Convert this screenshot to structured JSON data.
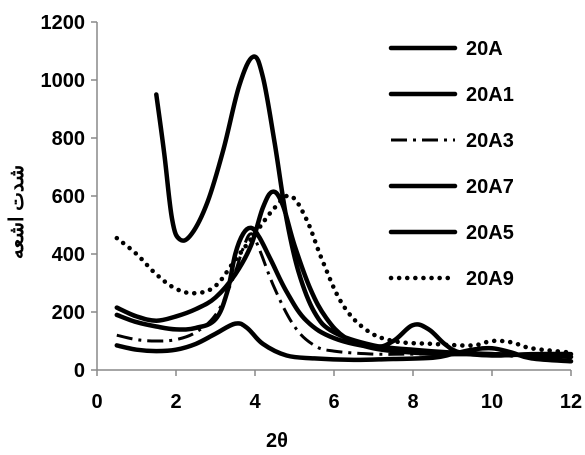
{
  "chart_data": {
    "type": "line",
    "title": "",
    "xlabel": "2θ",
    "ylabel": "شدت اشعه",
    "xlim": [
      0,
      12
    ],
    "ylim": [
      0,
      1200
    ],
    "x_ticks": [
      0,
      2,
      4,
      6,
      8,
      10,
      12
    ],
    "y_ticks": [
      0,
      200,
      400,
      600,
      800,
      1000,
      1200
    ],
    "grid": false,
    "legend_position": "top-right",
    "series": [
      {
        "name": "20A",
        "style": "solid",
        "color": "#000000",
        "points": [
          [
            1.5,
            950
          ],
          [
            1.7,
            750
          ],
          [
            1.9,
            520
          ],
          [
            2.1,
            450
          ],
          [
            2.4,
            470
          ],
          [
            2.8,
            580
          ],
          [
            3.2,
            760
          ],
          [
            3.6,
            980
          ],
          [
            3.95,
            1080
          ],
          [
            4.2,
            1010
          ],
          [
            4.5,
            780
          ],
          [
            4.8,
            520
          ],
          [
            5.1,
            340
          ],
          [
            5.5,
            200
          ],
          [
            6.0,
            130
          ],
          [
            7.0,
            85
          ],
          [
            8.0,
            70
          ],
          [
            9.0,
            60
          ],
          [
            10.0,
            55
          ],
          [
            10.5,
            50
          ]
        ]
      },
      {
        "name": "20A1",
        "style": "solid",
        "color": "#000000",
        "points": [
          [
            0.5,
            85
          ],
          [
            1.0,
            70
          ],
          [
            1.5,
            65
          ],
          [
            2.0,
            70
          ],
          [
            2.5,
            90
          ],
          [
            3.0,
            125
          ],
          [
            3.5,
            160
          ],
          [
            3.8,
            145
          ],
          [
            4.2,
            90
          ],
          [
            4.8,
            50
          ],
          [
            5.5,
            40
          ],
          [
            6.5,
            35
          ],
          [
            7.5,
            38
          ],
          [
            8.5,
            42
          ],
          [
            9.0,
            55
          ],
          [
            9.5,
            70
          ],
          [
            10.0,
            75
          ],
          [
            10.5,
            60
          ],
          [
            11.0,
            40
          ],
          [
            12.0,
            30
          ]
        ]
      },
      {
        "name": "20A3",
        "style": "dashdot",
        "color": "#000000",
        "points": [
          [
            0.5,
            120
          ],
          [
            1.0,
            105
          ],
          [
            1.5,
            100
          ],
          [
            2.0,
            105
          ],
          [
            2.5,
            130
          ],
          [
            3.0,
            190
          ],
          [
            3.4,
            300
          ],
          [
            3.7,
            420
          ],
          [
            3.9,
            470
          ],
          [
            4.1,
            420
          ],
          [
            4.5,
            280
          ],
          [
            5.0,
            150
          ],
          [
            5.5,
            85
          ],
          [
            6.0,
            65
          ],
          [
            7.0,
            55
          ],
          [
            8.0,
            55
          ],
          [
            9.0,
            55
          ],
          [
            10.0,
            55
          ],
          [
            11.0,
            50
          ],
          [
            12.0,
            45
          ]
        ]
      },
      {
        "name": "20A7",
        "style": "solid",
        "color": "#000000",
        "points": [
          [
            0.5,
            190
          ],
          [
            1.0,
            165
          ],
          [
            1.5,
            150
          ],
          [
            2.0,
            140
          ],
          [
            2.5,
            145
          ],
          [
            3.0,
            175
          ],
          [
            3.3,
            270
          ],
          [
            3.5,
            400
          ],
          [
            3.7,
            470
          ],
          [
            3.9,
            490
          ],
          [
            4.1,
            460
          ],
          [
            4.4,
            380
          ],
          [
            4.8,
            270
          ],
          [
            5.3,
            170
          ],
          [
            6.0,
            110
          ],
          [
            7.0,
            80
          ],
          [
            7.5,
            100
          ],
          [
            8.0,
            155
          ],
          [
            8.4,
            140
          ],
          [
            8.8,
            90
          ],
          [
            9.2,
            60
          ],
          [
            10.0,
            50
          ],
          [
            11.0,
            55
          ],
          [
            12.0,
            55
          ]
        ]
      },
      {
        "name": "20A5",
        "style": "solid",
        "color": "#000000",
        "points": [
          [
            0.5,
            215
          ],
          [
            1.0,
            185
          ],
          [
            1.5,
            170
          ],
          [
            2.0,
            185
          ],
          [
            2.5,
            210
          ],
          [
            3.0,
            250
          ],
          [
            3.5,
            330
          ],
          [
            3.9,
            430
          ],
          [
            4.2,
            560
          ],
          [
            4.45,
            615
          ],
          [
            4.7,
            570
          ],
          [
            5.0,
            430
          ],
          [
            5.4,
            280
          ],
          [
            5.8,
            180
          ],
          [
            6.3,
            110
          ],
          [
            7.0,
            75
          ],
          [
            8.0,
            60
          ],
          [
            9.0,
            55
          ],
          [
            10.0,
            55
          ],
          [
            11.0,
            50
          ],
          [
            12.0,
            45
          ]
        ]
      },
      {
        "name": "20A9",
        "style": "dotted",
        "color": "#000000",
        "points": [
          [
            0.5,
            455
          ],
          [
            1.0,
            400
          ],
          [
            1.5,
            330
          ],
          [
            2.0,
            280
          ],
          [
            2.5,
            265
          ],
          [
            3.0,
            290
          ],
          [
            3.5,
            380
          ],
          [
            4.0,
            470
          ],
          [
            4.5,
            560
          ],
          [
            4.9,
            600
          ],
          [
            5.3,
            520
          ],
          [
            5.7,
            380
          ],
          [
            6.2,
            230
          ],
          [
            6.8,
            140
          ],
          [
            7.5,
            100
          ],
          [
            8.5,
            90
          ],
          [
            9.5,
            85
          ],
          [
            10.0,
            100
          ],
          [
            10.5,
            95
          ],
          [
            11.0,
            75
          ],
          [
            12.0,
            60
          ]
        ]
      }
    ]
  }
}
